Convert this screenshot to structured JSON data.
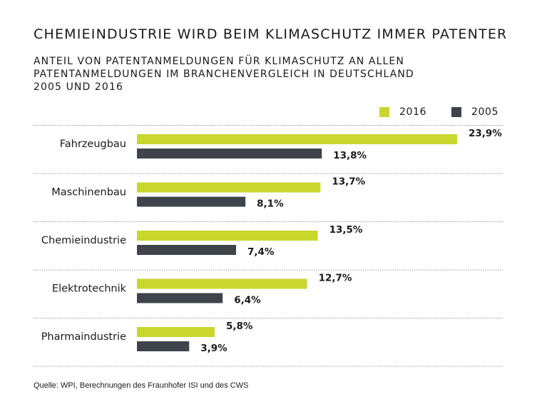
{
  "chart_data": {
    "type": "bar",
    "orientation": "horizontal",
    "title": "CHEMIEINDUSTRIE WIRD BEIM KLIMASCHUTZ IMMER PATENTER",
    "subtitle_lines": [
      "ANTEIL VON PATENTANMELDUNGEN FÜR KLIMASCHUTZ AN ALLEN",
      "PATENTANMELDUNGEN IM BRANCHENVERGLEICH IN DEUTSCHLAND",
      "2005 UND 2016"
    ],
    "categories": [
      "Fahrzeugbau",
      "Maschinenbau",
      "Chemieindustrie",
      "Elektrotechnik",
      "Pharmaindustrie"
    ],
    "series": [
      {
        "name": "2016",
        "color": "#c9d62e",
        "values": [
          23.9,
          13.7,
          13.5,
          12.7,
          5.8
        ],
        "labels": [
          "23,9%",
          "13,7%",
          "13,5%",
          "12,7%",
          "5,8%"
        ]
      },
      {
        "name": "2005",
        "color": "#3f444a",
        "values": [
          13.8,
          8.1,
          7.4,
          6.4,
          3.9
        ],
        "labels": [
          "13,8%",
          "8,1%",
          "7,4%",
          "6,4%",
          "3,9%"
        ]
      }
    ],
    "xlim": [
      0,
      23.9
    ],
    "legend_position": "top-right",
    "source": "Quelle: WPI, Berechnungen des Fraunhofer ISI und des CWS"
  }
}
